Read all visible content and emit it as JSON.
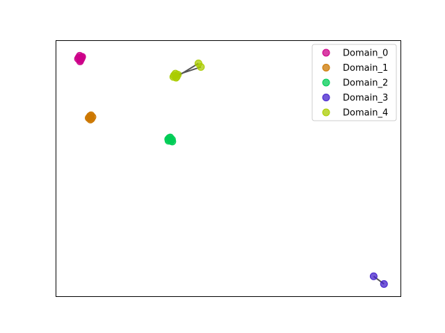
{
  "chart_data": {
    "type": "scatter",
    "title": "",
    "xlabel": "",
    "ylabel": "",
    "xlim": [
      0,
      100
    ],
    "ylim": [
      0,
      100
    ],
    "grid": false,
    "axis_ticks": false,
    "legend_position": "top-right",
    "series": [
      {
        "name": "Domain_0",
        "color": "#cc0088",
        "points": [
          [
            6.5,
            93.5
          ],
          [
            7.0,
            92.5
          ],
          [
            7.5,
            93.8
          ],
          [
            6.8,
            94.2
          ],
          [
            7.2,
            92.8
          ],
          [
            6.3,
            93.0
          ],
          [
            7.4,
            93.4
          ],
          [
            6.9,
            92.0
          ]
        ],
        "links": []
      },
      {
        "name": "Domain_1",
        "color": "#cc7700",
        "points": [
          [
            9.5,
            70.0
          ],
          [
            10.2,
            69.5
          ],
          [
            9.8,
            70.6
          ],
          [
            10.5,
            70.2
          ],
          [
            9.9,
            69.2
          ],
          [
            10.1,
            70.9
          ],
          [
            9.4,
            69.8
          ]
        ],
        "links": []
      },
      {
        "name": "Domain_2",
        "color": "#00cc55",
        "points": [
          [
            32.5,
            61.5
          ],
          [
            33.3,
            60.8
          ],
          [
            32.8,
            62.0
          ],
          [
            33.6,
            61.4
          ],
          [
            32.6,
            60.9
          ],
          [
            33.1,
            62.2
          ],
          [
            33.7,
            60.6
          ]
        ],
        "links": []
      },
      {
        "name": "Domain_3",
        "color": "#4422cc",
        "points": [
          [
            92.2,
            7.8
          ],
          [
            95.2,
            4.8
          ]
        ],
        "links": [
          [
            0,
            1
          ]
        ]
      },
      {
        "name": "Domain_4",
        "color": "#aacc00",
        "points": [
          [
            34.2,
            86.5
          ],
          [
            35.0,
            86.0
          ],
          [
            34.6,
            87.2
          ],
          [
            35.3,
            86.8
          ],
          [
            34.0,
            85.9
          ],
          [
            34.8,
            85.6
          ],
          [
            41.3,
            91.2
          ],
          [
            42.0,
            89.8
          ]
        ],
        "links": [
          [
            1,
            6
          ],
          [
            3,
            7
          ]
        ]
      }
    ]
  }
}
